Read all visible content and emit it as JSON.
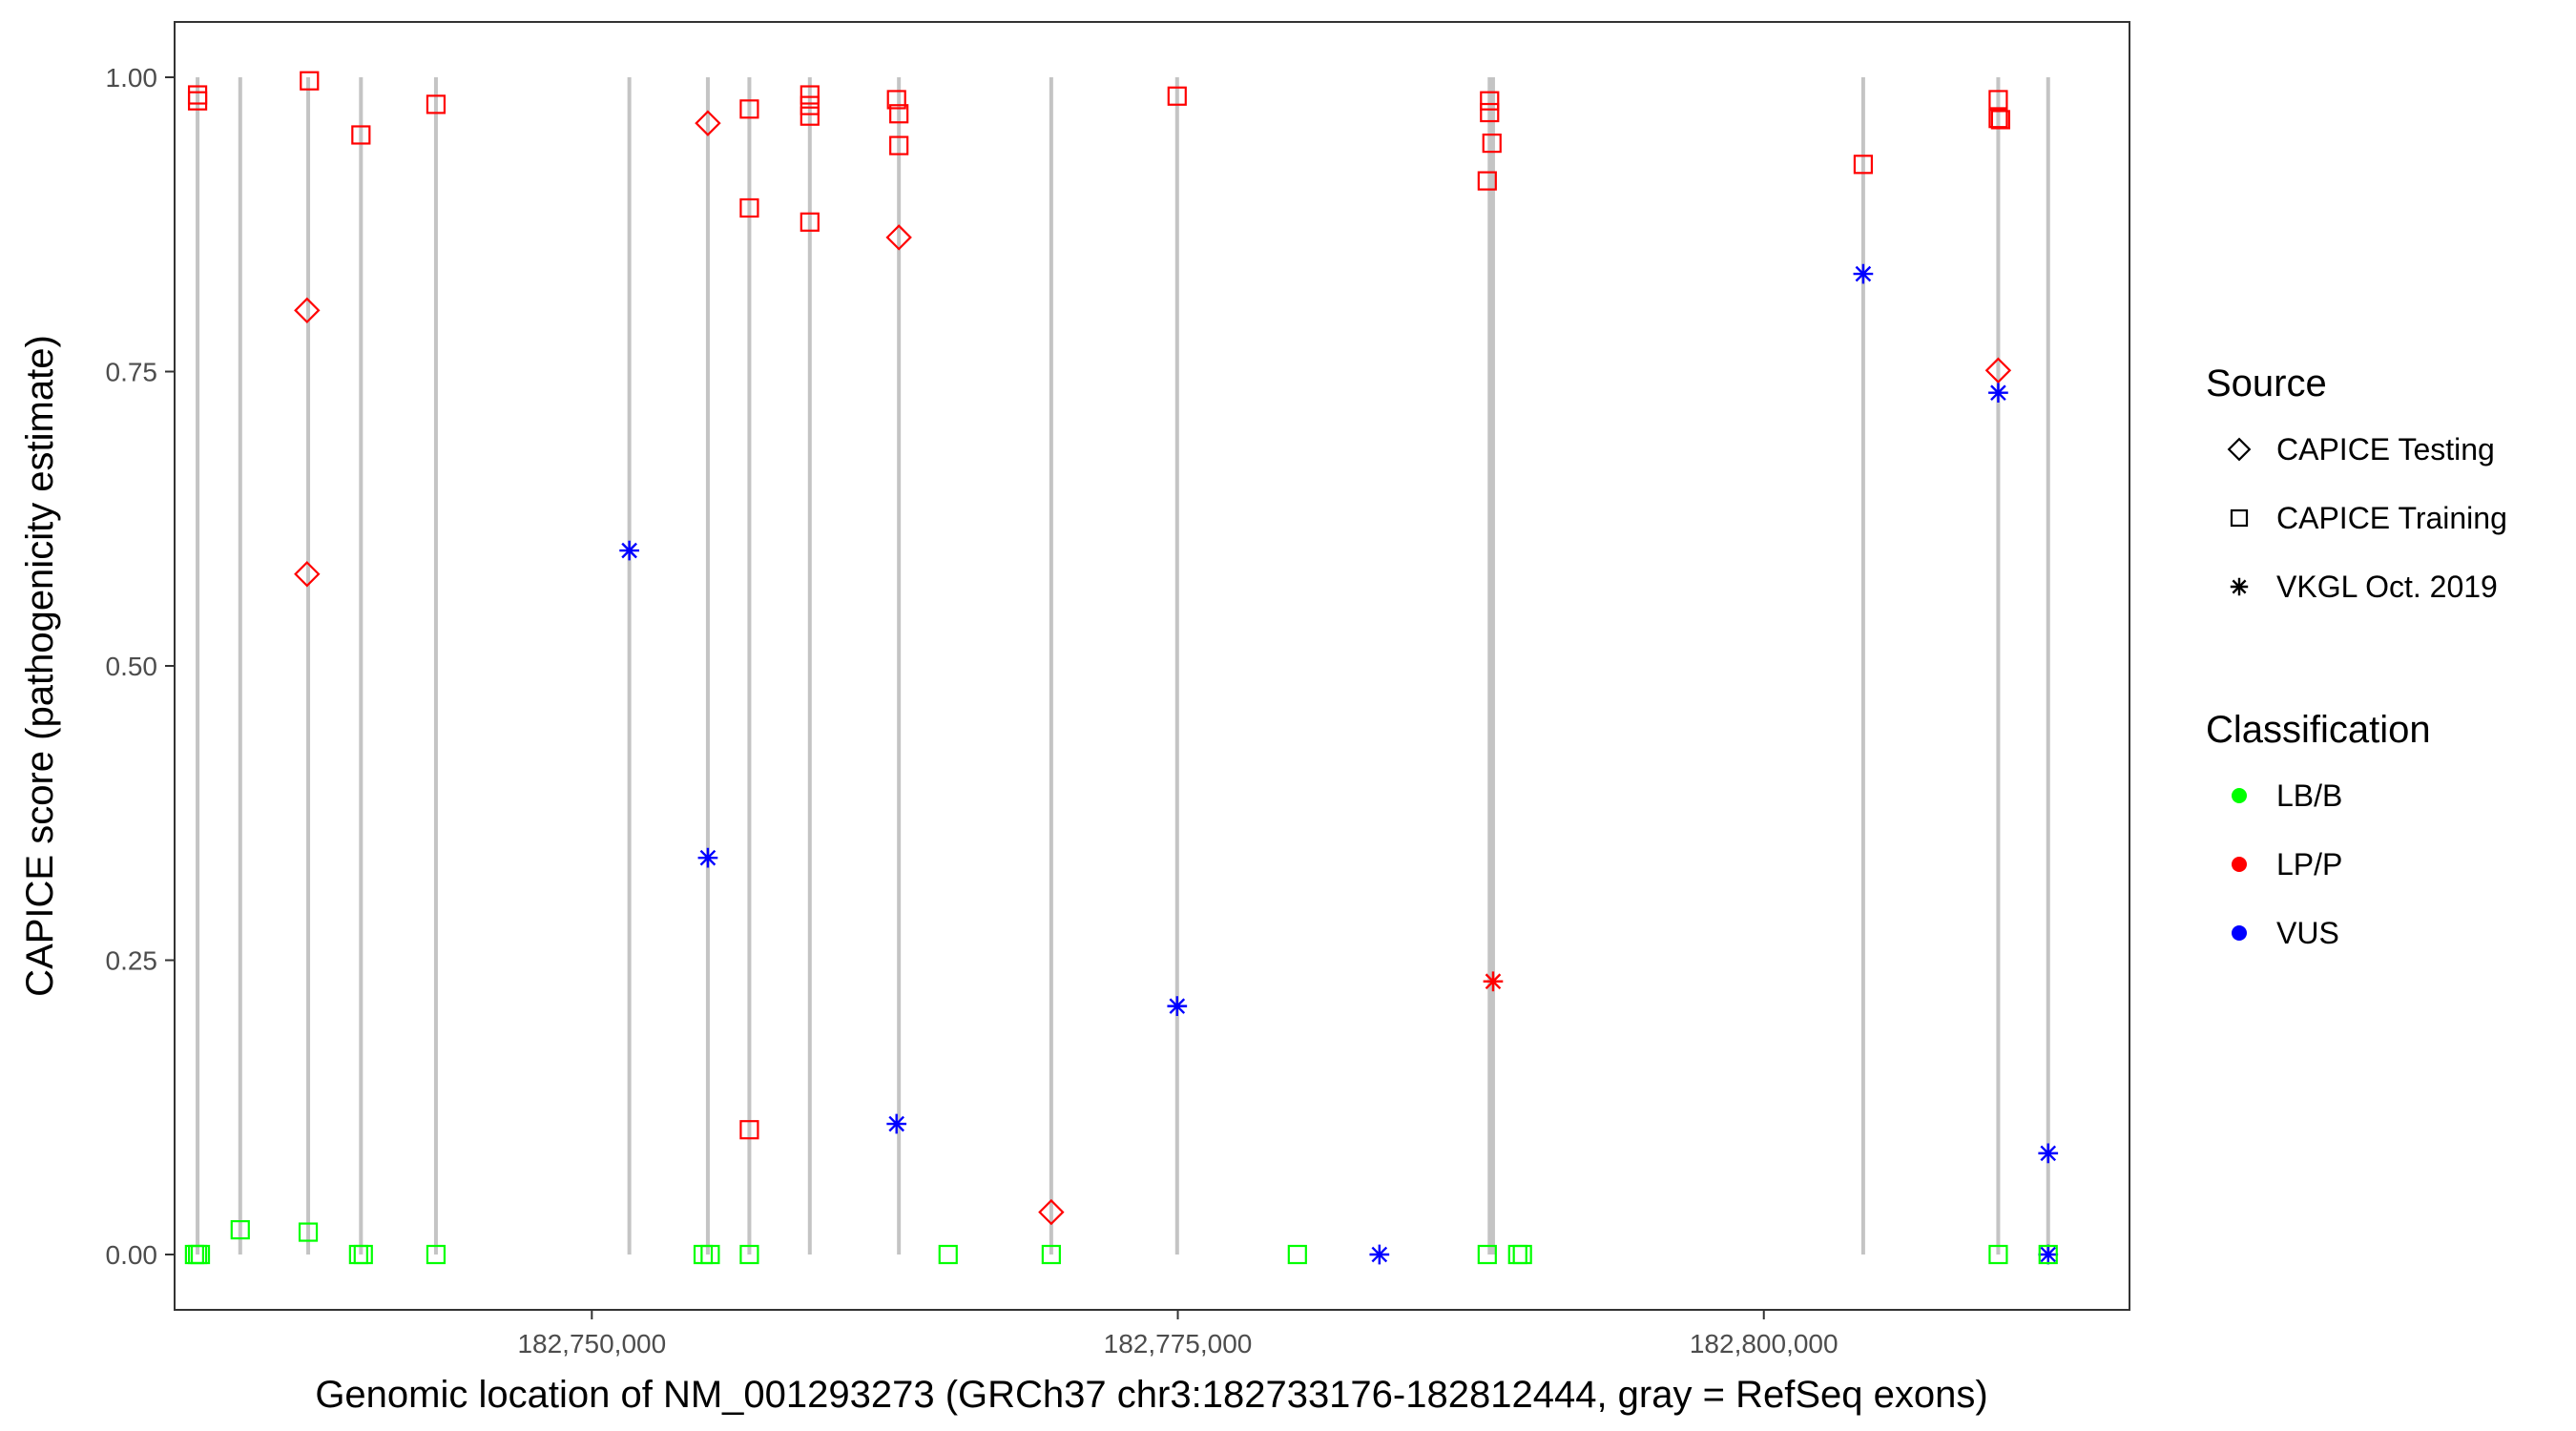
{
  "chart_data": {
    "type": "scatter",
    "xlabel": "Genomic location of NM_001293273 (GRCh37 chr3:182733176-182812444, gray = RefSeq exons)",
    "ylabel": "CAPICE score (pathogenicity estimate)",
    "xlim": [
      182732200,
      182815600
    ],
    "ylim": [
      -0.047,
      1.047
    ],
    "x_ticks": [
      182750000,
      182775000,
      182800000
    ],
    "x_tick_labels": [
      "182,750,000",
      "182,775,000",
      "182,800,000"
    ],
    "y_ticks": [
      0,
      0.25,
      0.5,
      0.75,
      1.0
    ],
    "y_tick_labels": [
      "0.00",
      "0.25",
      "0.50",
      "0.75",
      "1.00"
    ],
    "grid": false,
    "exons": [
      182733180,
      182735000,
      182737900,
      182740150,
      182743350,
      182751600,
      182754950,
      182756720,
      182759300,
      182763100,
      182769600,
      182774970,
      182788300,
      182788450,
      182804240,
      182810000,
      182812130
    ],
    "legend": {
      "placement": "right",
      "source_title": "Source",
      "source_items": [
        {
          "label": "CAPICE Testing",
          "shape": "diamond"
        },
        {
          "label": "CAPICE Training",
          "shape": "square"
        },
        {
          "label": "VKGL Oct. 2019",
          "shape": "star"
        }
      ],
      "class_title": "Classification",
      "class_items": [
        {
          "label": "LB/B",
          "color": "#00ff00"
        },
        {
          "label": "LP/P",
          "color": "#ff0000"
        },
        {
          "label": "VUS",
          "color": "#0000ff"
        }
      ]
    },
    "points": [
      {
        "x": 182733180,
        "y": 0.985,
        "shape": "square",
        "class": "LP/P"
      },
      {
        "x": 182733180,
        "y": 0.98,
        "shape": "square",
        "class": "LP/P"
      },
      {
        "x": 182737950,
        "y": 0.997,
        "shape": "square",
        "class": "LP/P"
      },
      {
        "x": 182740150,
        "y": 0.951,
        "shape": "square",
        "class": "LP/P"
      },
      {
        "x": 182743350,
        "y": 0.977,
        "shape": "square",
        "class": "LP/P"
      },
      {
        "x": 182756720,
        "y": 0.973,
        "shape": "square",
        "class": "LP/P"
      },
      {
        "x": 182756720,
        "y": 0.889,
        "shape": "square",
        "class": "LP/P"
      },
      {
        "x": 182756720,
        "y": 0.106,
        "shape": "square",
        "class": "LP/P"
      },
      {
        "x": 182759300,
        "y": 0.985,
        "shape": "square",
        "class": "LP/P"
      },
      {
        "x": 182759300,
        "y": 0.976,
        "shape": "square",
        "class": "LP/P"
      },
      {
        "x": 182759300,
        "y": 0.967,
        "shape": "square",
        "class": "LP/P"
      },
      {
        "x": 182759300,
        "y": 0.877,
        "shape": "square",
        "class": "LP/P"
      },
      {
        "x": 182763000,
        "y": 0.981,
        "shape": "square",
        "class": "LP/P"
      },
      {
        "x": 182763100,
        "y": 0.969,
        "shape": "square",
        "class": "LP/P"
      },
      {
        "x": 182763100,
        "y": 0.942,
        "shape": "square",
        "class": "LP/P"
      },
      {
        "x": 182774970,
        "y": 0.984,
        "shape": "square",
        "class": "LP/P"
      },
      {
        "x": 182788300,
        "y": 0.98,
        "shape": "square",
        "class": "LP/P"
      },
      {
        "x": 182788300,
        "y": 0.97,
        "shape": "square",
        "class": "LP/P"
      },
      {
        "x": 182788400,
        "y": 0.944,
        "shape": "square",
        "class": "LP/P"
      },
      {
        "x": 182788200,
        "y": 0.912,
        "shape": "square",
        "class": "LP/P"
      },
      {
        "x": 182804240,
        "y": 0.926,
        "shape": "square",
        "class": "LP/P"
      },
      {
        "x": 182810000,
        "y": 0.981,
        "shape": "square",
        "class": "LP/P"
      },
      {
        "x": 182810000,
        "y": 0.965,
        "shape": "square",
        "class": "LP/P"
      },
      {
        "x": 182810100,
        "y": 0.964,
        "shape": "square",
        "class": "LP/P"
      },
      {
        "x": 182737850,
        "y": 0.802,
        "shape": "diamond",
        "class": "LP/P"
      },
      {
        "x": 182737850,
        "y": 0.578,
        "shape": "diamond",
        "class": "LP/P"
      },
      {
        "x": 182754950,
        "y": 0.961,
        "shape": "diamond",
        "class": "LP/P"
      },
      {
        "x": 182763100,
        "y": 0.864,
        "shape": "diamond",
        "class": "LP/P"
      },
      {
        "x": 182769600,
        "y": 0.036,
        "shape": "diamond",
        "class": "LP/P"
      },
      {
        "x": 182810000,
        "y": 0.751,
        "shape": "diamond",
        "class": "LP/P"
      },
      {
        "x": 182788450,
        "y": 0.232,
        "shape": "star",
        "class": "LP/P"
      },
      {
        "x": 182751600,
        "y": 0.598,
        "shape": "star",
        "class": "VUS"
      },
      {
        "x": 182754950,
        "y": 0.337,
        "shape": "star",
        "class": "VUS"
      },
      {
        "x": 182763000,
        "y": 0.111,
        "shape": "star",
        "class": "VUS"
      },
      {
        "x": 182774970,
        "y": 0.211,
        "shape": "star",
        "class": "VUS"
      },
      {
        "x": 182783600,
        "y": 0.0,
        "shape": "star",
        "class": "VUS"
      },
      {
        "x": 182804240,
        "y": 0.833,
        "shape": "star",
        "class": "VUS"
      },
      {
        "x": 182810000,
        "y": 0.732,
        "shape": "star",
        "class": "VUS"
      },
      {
        "x": 182812130,
        "y": 0.086,
        "shape": "star",
        "class": "VUS"
      },
      {
        "x": 182812130,
        "y": 0.0,
        "shape": "star",
        "class": "VUS"
      },
      {
        "x": 182733050,
        "y": 0.0,
        "shape": "square",
        "class": "LB/B"
      },
      {
        "x": 182733180,
        "y": 0.0,
        "shape": "square",
        "class": "LB/B"
      },
      {
        "x": 182733300,
        "y": 0.0,
        "shape": "square",
        "class": "LB/B"
      },
      {
        "x": 182735000,
        "y": 0.021,
        "shape": "square",
        "class": "LB/B"
      },
      {
        "x": 182737900,
        "y": 0.019,
        "shape": "square",
        "class": "LB/B"
      },
      {
        "x": 182740050,
        "y": 0.0,
        "shape": "square",
        "class": "LB/B"
      },
      {
        "x": 182740250,
        "y": 0.0,
        "shape": "square",
        "class": "LB/B"
      },
      {
        "x": 182743350,
        "y": 0.0,
        "shape": "square",
        "class": "LB/B"
      },
      {
        "x": 182754750,
        "y": 0.0,
        "shape": "square",
        "class": "LB/B"
      },
      {
        "x": 182755050,
        "y": 0.0,
        "shape": "square",
        "class": "LB/B"
      },
      {
        "x": 182756720,
        "y": 0.0,
        "shape": "square",
        "class": "LB/B"
      },
      {
        "x": 182765200,
        "y": 0.0,
        "shape": "square",
        "class": "LB/B"
      },
      {
        "x": 182769600,
        "y": 0.0,
        "shape": "square",
        "class": "LB/B"
      },
      {
        "x": 182780100,
        "y": 0.0,
        "shape": "square",
        "class": "LB/B"
      },
      {
        "x": 182788200,
        "y": 0.0,
        "shape": "square",
        "class": "LB/B"
      },
      {
        "x": 182789500,
        "y": 0.0,
        "shape": "square",
        "class": "LB/B"
      },
      {
        "x": 182789700,
        "y": 0.0,
        "shape": "square",
        "class": "LB/B"
      },
      {
        "x": 182810000,
        "y": 0.0,
        "shape": "square",
        "class": "LB/B"
      },
      {
        "x": 182812130,
        "y": 0.0,
        "shape": "square",
        "class": "LB/B"
      }
    ]
  }
}
